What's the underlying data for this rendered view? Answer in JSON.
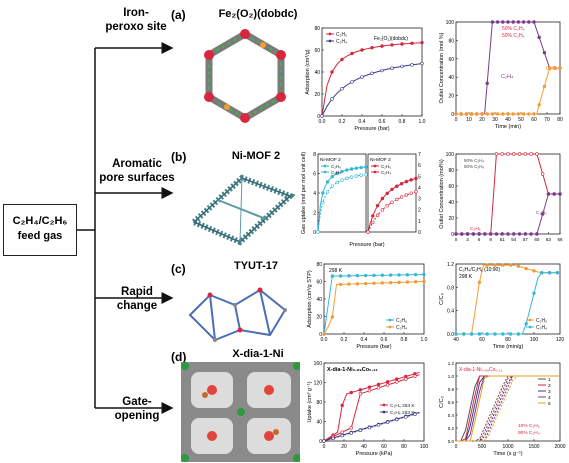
{
  "feed": {
    "line1": "C₂H₄/C₂H₆",
    "line2": "feed gas"
  },
  "strategies": [
    {
      "line1": "Iron-",
      "line2": "peroxo site"
    },
    {
      "line1": "Aromatic",
      "line2": "pore surfaces"
    },
    {
      "line1": "Rapid change",
      "line2": ""
    },
    {
      "line1": "Gate-opening",
      "line2": ""
    }
  ],
  "panels": [
    {
      "label": "(a)",
      "material": "Fe₂(O₂)(dobdc)"
    },
    {
      "label": "(b)",
      "material": "Ni-MOF 2"
    },
    {
      "label": "(c)",
      "material": "TYUT-17"
    },
    {
      "label": "(d)",
      "material": "X-dia-1-Ni"
    }
  ],
  "iso_a": {
    "ylabel": "Adsorption (cm³/g)",
    "xlabel": "Pressure (bar)",
    "legend": [
      "C₂H₆",
      "C₂H₄"
    ],
    "note": "Fe₂(O₂)(dobdc)",
    "yticks": [
      "0",
      "20",
      "40",
      "60",
      "80"
    ],
    "xticks": [
      "0.0",
      "0.2",
      "0.4",
      "0.6",
      "0.8",
      "1.0"
    ]
  },
  "bt_a": {
    "ylabel": "Outlet Concentration (mol %)",
    "xlabel": "Time (min)",
    "legend": [
      "50% C₂H₄",
      "50% C₂H₆"
    ],
    "lab1": "C₂H₄",
    "lab2": "C₂H₆",
    "yticks": [
      "0",
      "20",
      "40",
      "60",
      "80",
      "100"
    ],
    "xticks": [
      "0",
      "10",
      "20",
      "30",
      "40",
      "50",
      "60",
      "70",
      "80"
    ]
  },
  "iso_b": {
    "ylabel": "Gas uptake (mol per mol unit cell)",
    "xlabel": "Pressure (bar)",
    "title1": "Ni-MOF 2",
    "title2": "Ni-MOF 2",
    "legend": [
      "C₂H₆",
      "C₂H₄"
    ],
    "yticks": [
      "0",
      "1",
      "2",
      "3",
      "4",
      "5",
      "6",
      "7"
    ]
  },
  "bt_b": {
    "ylabel": "Outlet Concentration (mol%)",
    "legend": [
      "50% C₂H₄",
      "50% C₂H₆"
    ],
    "lab1": "C₂H₆",
    "lab2": "C₂H₄",
    "yticks": [
      "0",
      "20",
      "40",
      "60",
      "80",
      "100"
    ],
    "xticks": [
      "0",
      "3",
      "6",
      "9",
      "51",
      "54",
      "57",
      "60",
      "63",
      "66"
    ]
  },
  "iso_c": {
    "ylabel": "Adsorption (cm³/g STP)",
    "xlabel": "Pressure (bar)",
    "temp": "298 K",
    "legend": [
      "C₂H₆",
      "C₂H₄"
    ],
    "yticks": [
      "0",
      "20",
      "40",
      "60",
      "80"
    ],
    "xticks": [
      "0.0",
      "0.2",
      "0.4",
      "0.6",
      "0.8",
      "1.0"
    ]
  },
  "bt_c": {
    "ylabel": "C/C₀",
    "xlabel": "Time (min/g)",
    "title": "C₂H₄/C₂H₆ (10:90)",
    "temp": "298 K",
    "legend": [
      "C₂H₆",
      "C₂H₄"
    ],
    "yticks": [
      "0.0",
      "0.4",
      "0.8",
      "1.2"
    ],
    "xticks": [
      "40",
      "60",
      "80",
      "100",
      "120"
    ]
  },
  "iso_d": {
    "ylabel": "Uptake (cm³ g⁻¹)",
    "xlabel": "Pressure (kPa)",
    "title": "X-dia-1-Ni₀.₈₉Co₀.₁₁",
    "legend": [
      "C₂H₄ 263 K",
      "C₂H₆ 263 K"
    ],
    "yticks": [
      "0",
      "40",
      "80",
      "120",
      "160"
    ],
    "xticks": [
      "0",
      "20",
      "40",
      "60",
      "80",
      "100"
    ]
  },
  "bt_d": {
    "ylabel": "C/C₀",
    "xlabel": "Time (s g⁻¹)",
    "title": "X-dia-1-Ni₀.₈₉Co₀.₁₁",
    "cycles": [
      "1",
      "2",
      "3",
      "4",
      "5"
    ],
    "note1": "10% C₂H₆",
    "note2": "90% C₂H₄",
    "yticks": [
      "0.0",
      "0.2",
      "0.4",
      "0.6",
      "0.8",
      "1.0",
      "1.2"
    ],
    "xticks": [
      "0",
      "500",
      "1000",
      "1500",
      "2000"
    ]
  },
  "colors": {
    "red": "#d7263d",
    "navy": "#3a3a8c",
    "cyan": "#35b8d6",
    "orange": "#f39c34",
    "purple": "#7a3b8f"
  }
}
